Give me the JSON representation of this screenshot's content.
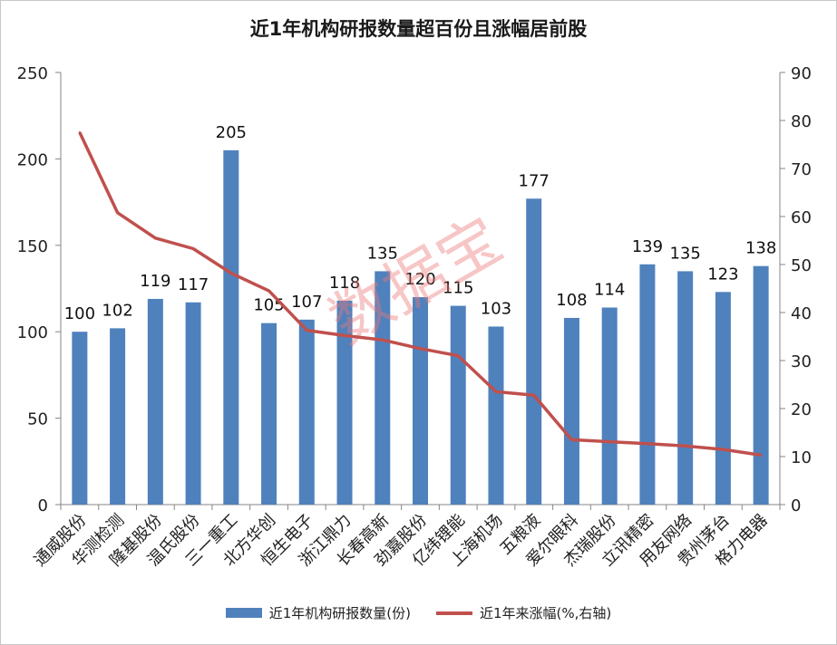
{
  "chart_data": {
    "type": "bar",
    "title": "近1年机构研报数量超百份且涨幅居前股",
    "watermark": "数据宝",
    "categories": [
      "通威股份",
      "华测检测",
      "隆基股份",
      "温氏股份",
      "三一重工",
      "北方华创",
      "恒生电子",
      "浙江鼎力",
      "长春高新",
      "劲嘉股份",
      "亿纬锂能",
      "上海机场",
      "五粮液",
      "爱尔眼科",
      "杰瑞股份",
      "立讯精密",
      "用友网络",
      "贵州茅台",
      "格力电器"
    ],
    "series": [
      {
        "name": "近1年机构研报数量(份)",
        "type": "bar",
        "axis": "left",
        "color": "#4f81bd",
        "values": [
          100,
          102,
          119,
          117,
          205,
          105,
          107,
          118,
          135,
          120,
          115,
          103,
          177,
          108,
          114,
          139,
          135,
          123,
          138
        ]
      },
      {
        "name": "近1年来涨幅(%,右轴)",
        "type": "line",
        "axis": "right",
        "color": "#c0504d",
        "values": [
          77.5,
          60.8,
          55.5,
          53.3,
          48.2,
          44.5,
          36.3,
          35.2,
          34.3,
          32.5,
          31.0,
          23.5,
          22.8,
          13.5,
          13.1,
          12.7,
          12.2,
          11.5,
          10.3
        ]
      }
    ],
    "y_left": {
      "min": 0,
      "max": 250,
      "ticks": [
        0,
        50,
        100,
        150,
        200,
        250
      ]
    },
    "y_right": {
      "min": 0,
      "max": 90,
      "ticks": [
        0,
        10,
        20,
        30,
        40,
        50,
        60,
        70,
        80,
        90
      ]
    },
    "grid": false,
    "legend": "bottom"
  }
}
